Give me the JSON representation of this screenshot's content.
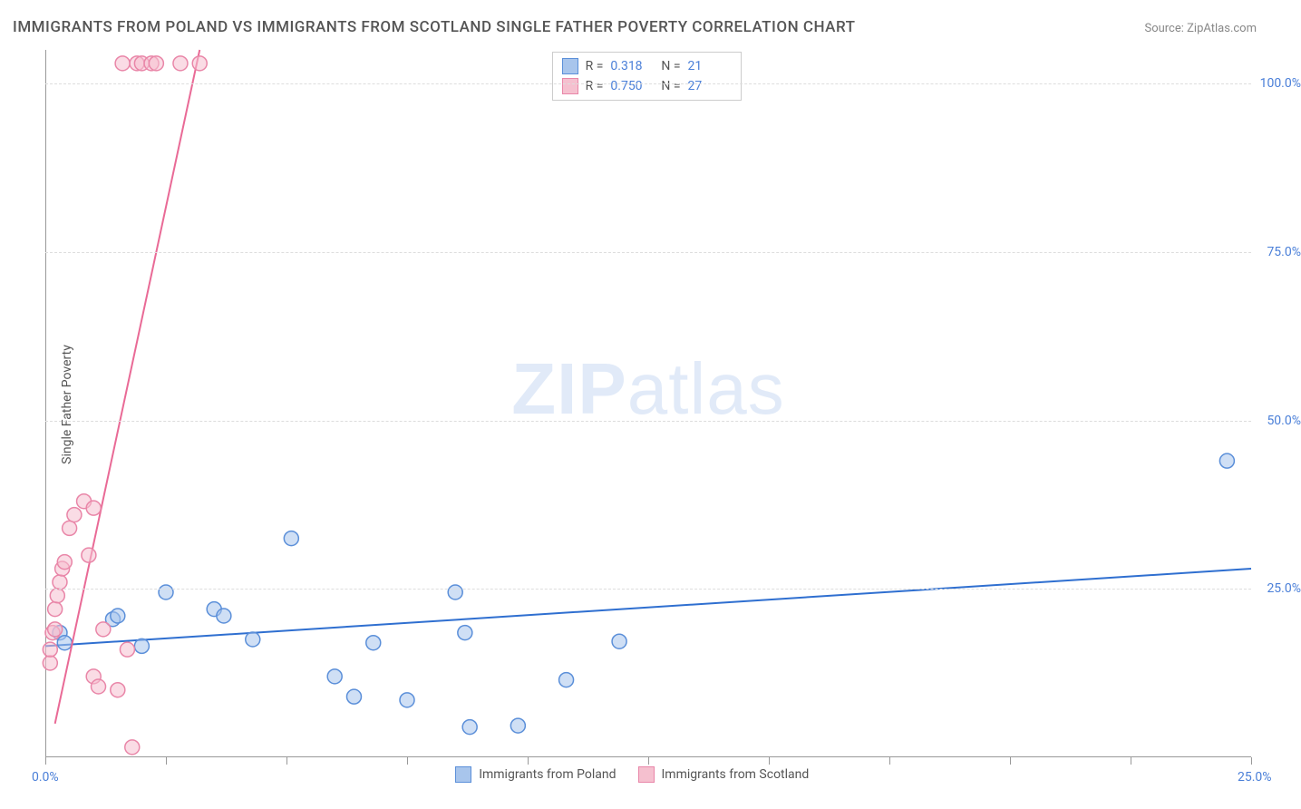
{
  "title": "IMMIGRANTS FROM POLAND VS IMMIGRANTS FROM SCOTLAND SINGLE FATHER POVERTY CORRELATION CHART",
  "source": "Source: ZipAtlas.com",
  "watermark_bold": "ZIP",
  "watermark_light": "atlas",
  "ylabel": "Single Father Poverty",
  "chart": {
    "type": "scatter",
    "xlim": [
      0,
      25
    ],
    "ylim": [
      0,
      105
    ],
    "x_ticks": [
      0,
      2.5,
      5,
      7.5,
      10,
      12.5,
      15,
      17.5,
      20,
      22.5,
      25
    ],
    "x_tick_labels": {
      "0": "0.0%",
      "25": "25.0%"
    },
    "y_ticks": [
      25,
      50,
      75,
      100
    ],
    "y_tick_labels": {
      "25": "25.0%",
      "50": "50.0%",
      "75": "75.0%",
      "100": "100.0%"
    },
    "background_color": "#ffffff",
    "grid_color": "#dddddd",
    "axis_color": "#999999",
    "series": [
      {
        "name": "Immigrants from Poland",
        "color_fill": "#a8c5ec",
        "color_stroke": "#5b8fd9",
        "line_color": "#2f6fd0",
        "marker_radius": 8,
        "r_value": "0.318",
        "n_value": "21",
        "points": [
          [
            0.3,
            18.5
          ],
          [
            0.4,
            17
          ],
          [
            1.4,
            20.5
          ],
          [
            1.5,
            21
          ],
          [
            2.0,
            16.5
          ],
          [
            2.5,
            24.5
          ],
          [
            3.5,
            22
          ],
          [
            3.7,
            21
          ],
          [
            4.3,
            17.5
          ],
          [
            5.1,
            32.5
          ],
          [
            6.0,
            12
          ],
          [
            6.4,
            9
          ],
          [
            6.8,
            17
          ],
          [
            7.5,
            8.5
          ],
          [
            8.5,
            24.5
          ],
          [
            8.7,
            18.5
          ],
          [
            8.8,
            4.5
          ],
          [
            9.8,
            4.7
          ],
          [
            10.8,
            11.5
          ],
          [
            11.9,
            17.2
          ],
          [
            24.5,
            44
          ]
        ],
        "trend": {
          "x1": 0,
          "y1": 16.5,
          "x2": 25,
          "y2": 28
        }
      },
      {
        "name": "Immigrants from Scotland",
        "color_fill": "#f5c0cf",
        "color_stroke": "#e986a8",
        "line_color": "#e96a96",
        "marker_radius": 8,
        "r_value": "0.750",
        "n_value": "27",
        "points": [
          [
            0.1,
            14
          ],
          [
            0.1,
            16
          ],
          [
            0.15,
            18.5
          ],
          [
            0.2,
            19
          ],
          [
            0.2,
            22
          ],
          [
            0.25,
            24
          ],
          [
            0.3,
            26
          ],
          [
            0.35,
            28
          ],
          [
            0.4,
            29
          ],
          [
            0.5,
            34
          ],
          [
            0.6,
            36
          ],
          [
            0.8,
            38
          ],
          [
            0.9,
            30
          ],
          [
            1.0,
            37
          ],
          [
            1.0,
            12
          ],
          [
            1.1,
            10.5
          ],
          [
            1.2,
            19
          ],
          [
            1.5,
            10
          ],
          [
            1.7,
            16
          ],
          [
            1.8,
            1.5
          ],
          [
            1.6,
            103
          ],
          [
            1.9,
            103
          ],
          [
            2.0,
            103
          ],
          [
            2.2,
            103
          ],
          [
            2.3,
            103
          ],
          [
            2.8,
            103
          ],
          [
            3.2,
            103
          ]
        ],
        "trend": {
          "x1": 0.2,
          "y1": 5,
          "x2": 3.2,
          "y2": 105
        }
      }
    ]
  },
  "legend_labels": {
    "r": "R =",
    "n": "N ="
  }
}
